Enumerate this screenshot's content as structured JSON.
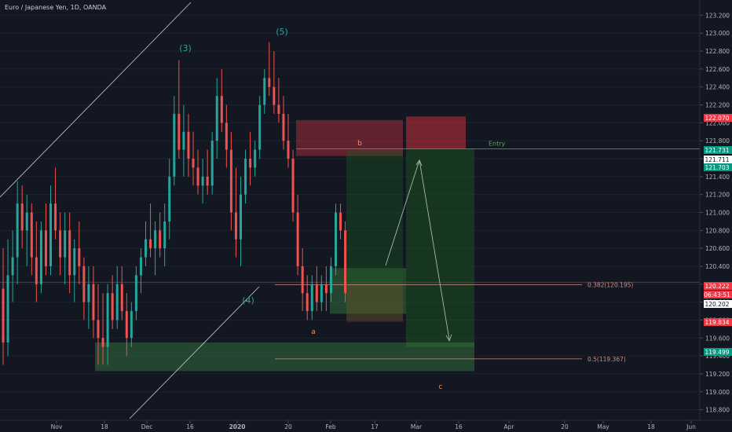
{
  "header": {
    "title": "Euro / Japanese Yen, 1D, OANDA"
  },
  "chart_data": {
    "type": "candlestick",
    "title": "Euro / Japanese Yen, 1D, OANDA",
    "ylim": [
      118.7,
      123.3
    ],
    "y_ticks": [
      "123.200",
      "123.000",
      "122.800",
      "122.600",
      "122.400",
      "122.200",
      "122.000",
      "121.800",
      "121.600",
      "121.400",
      "121.200",
      "121.000",
      "120.800",
      "120.600",
      "120.400",
      "120.200",
      "120.000",
      "119.800",
      "119.600",
      "119.400",
      "119.200",
      "119.000",
      "118.800"
    ],
    "x_ticks": [
      "Nov",
      "18",
      "Dec",
      "16",
      "2020",
      "20",
      "Feb",
      "17",
      "Mar",
      "16",
      "Apr",
      "20",
      "May",
      "18",
      "Jun"
    ],
    "candles": [
      {
        "o": 120.15,
        "h": 120.6,
        "l": 119.3,
        "c": 119.55
      },
      {
        "o": 119.55,
        "h": 120.7,
        "l": 119.4,
        "c": 120.3
      },
      {
        "o": 120.3,
        "h": 120.8,
        "l": 120.0,
        "c": 120.5
      },
      {
        "o": 120.5,
        "h": 121.35,
        "l": 120.2,
        "c": 121.1
      },
      {
        "o": 121.1,
        "h": 121.3,
        "l": 120.6,
        "c": 120.8
      },
      {
        "o": 120.8,
        "h": 121.2,
        "l": 120.4,
        "c": 121.0
      },
      {
        "o": 121.0,
        "h": 121.1,
        "l": 120.3,
        "c": 120.5
      },
      {
        "o": 120.5,
        "h": 120.9,
        "l": 120.0,
        "c": 120.2
      },
      {
        "o": 120.2,
        "h": 120.9,
        "l": 120.1,
        "c": 120.8
      },
      {
        "o": 120.8,
        "h": 121.1,
        "l": 120.3,
        "c": 120.4
      },
      {
        "o": 120.4,
        "h": 121.3,
        "l": 120.3,
        "c": 121.1
      },
      {
        "o": 121.1,
        "h": 121.5,
        "l": 120.7,
        "c": 120.8
      },
      {
        "o": 120.8,
        "h": 121.0,
        "l": 120.3,
        "c": 120.5
      },
      {
        "o": 120.5,
        "h": 121.0,
        "l": 120.2,
        "c": 120.8
      },
      {
        "o": 120.8,
        "h": 121.0,
        "l": 120.1,
        "c": 120.3
      },
      {
        "o": 120.3,
        "h": 120.7,
        "l": 120.0,
        "c": 120.6
      },
      {
        "o": 120.6,
        "h": 120.9,
        "l": 120.2,
        "c": 120.4
      },
      {
        "o": 120.4,
        "h": 120.5,
        "l": 119.8,
        "c": 120.0
      },
      {
        "o": 120.0,
        "h": 120.4,
        "l": 119.7,
        "c": 120.2
      },
      {
        "o": 120.2,
        "h": 120.4,
        "l": 119.6,
        "c": 119.8
      },
      {
        "o": 119.8,
        "h": 120.2,
        "l": 119.3,
        "c": 119.6
      },
      {
        "o": 119.6,
        "h": 120.1,
        "l": 119.3,
        "c": 119.5
      },
      {
        "o": 119.5,
        "h": 120.2,
        "l": 119.3,
        "c": 120.1
      },
      {
        "o": 120.1,
        "h": 120.3,
        "l": 119.7,
        "c": 119.8
      },
      {
        "o": 119.8,
        "h": 120.4,
        "l": 119.7,
        "c": 120.2
      },
      {
        "o": 120.2,
        "h": 120.4,
        "l": 119.8,
        "c": 119.9
      },
      {
        "o": 119.9,
        "h": 120.1,
        "l": 119.4,
        "c": 119.6
      },
      {
        "o": 119.6,
        "h": 120.0,
        "l": 119.5,
        "c": 119.9
      },
      {
        "o": 119.9,
        "h": 120.4,
        "l": 119.8,
        "c": 120.3
      },
      {
        "o": 120.3,
        "h": 120.6,
        "l": 120.1,
        "c": 120.5
      },
      {
        "o": 120.5,
        "h": 120.9,
        "l": 120.4,
        "c": 120.7
      },
      {
        "o": 120.7,
        "h": 121.1,
        "l": 120.5,
        "c": 120.6
      },
      {
        "o": 120.6,
        "h": 120.9,
        "l": 120.3,
        "c": 120.8
      },
      {
        "o": 120.8,
        "h": 121.0,
        "l": 120.5,
        "c": 120.6
      },
      {
        "o": 120.6,
        "h": 121.1,
        "l": 120.4,
        "c": 120.9
      },
      {
        "o": 120.9,
        "h": 121.6,
        "l": 120.7,
        "c": 121.4
      },
      {
        "o": 121.4,
        "h": 122.3,
        "l": 121.3,
        "c": 122.1
      },
      {
        "o": 122.1,
        "h": 122.7,
        "l": 121.6,
        "c": 121.7
      },
      {
        "o": 121.7,
        "h": 122.2,
        "l": 121.4,
        "c": 121.9
      },
      {
        "o": 121.9,
        "h": 122.1,
        "l": 121.4,
        "c": 121.6
      },
      {
        "o": 121.6,
        "h": 121.9,
        "l": 121.3,
        "c": 121.5
      },
      {
        "o": 121.5,
        "h": 121.7,
        "l": 121.2,
        "c": 121.3
      },
      {
        "o": 121.3,
        "h": 121.6,
        "l": 121.1,
        "c": 121.4
      },
      {
        "o": 121.4,
        "h": 121.7,
        "l": 121.2,
        "c": 121.3
      },
      {
        "o": 121.3,
        "h": 121.9,
        "l": 121.2,
        "c": 121.8
      },
      {
        "o": 121.8,
        "h": 122.5,
        "l": 121.6,
        "c": 122.3
      },
      {
        "o": 122.3,
        "h": 122.6,
        "l": 121.9,
        "c": 122.0
      },
      {
        "o": 122.0,
        "h": 122.2,
        "l": 121.5,
        "c": 121.7
      },
      {
        "o": 121.7,
        "h": 121.9,
        "l": 120.8,
        "c": 121.0
      },
      {
        "o": 121.0,
        "h": 121.5,
        "l": 120.5,
        "c": 120.7
      },
      {
        "o": 120.7,
        "h": 121.4,
        "l": 120.4,
        "c": 121.2
      },
      {
        "o": 121.2,
        "h": 121.7,
        "l": 121.1,
        "c": 121.6
      },
      {
        "o": 121.6,
        "h": 121.9,
        "l": 121.3,
        "c": 121.5
      },
      {
        "o": 121.5,
        "h": 121.8,
        "l": 121.4,
        "c": 121.7
      },
      {
        "o": 121.7,
        "h": 122.3,
        "l": 121.6,
        "c": 122.2
      },
      {
        "o": 122.2,
        "h": 122.6,
        "l": 122.1,
        "c": 122.5
      },
      {
        "o": 122.5,
        "h": 122.9,
        "l": 122.3,
        "c": 122.4
      },
      {
        "o": 122.4,
        "h": 122.8,
        "l": 122.1,
        "c": 122.2
      },
      {
        "o": 122.2,
        "h": 122.5,
        "l": 122.0,
        "c": 122.1
      },
      {
        "o": 122.1,
        "h": 122.3,
        "l": 121.7,
        "c": 121.8
      },
      {
        "o": 121.8,
        "h": 122.1,
        "l": 121.5,
        "c": 121.6
      },
      {
        "o": 121.6,
        "h": 121.7,
        "l": 120.9,
        "c": 121.0
      },
      {
        "o": 121.0,
        "h": 121.2,
        "l": 120.3,
        "c": 120.4
      },
      {
        "o": 120.4,
        "h": 120.6,
        "l": 119.9,
        "c": 120.1
      },
      {
        "o": 120.1,
        "h": 120.3,
        "l": 119.8,
        "c": 119.9
      },
      {
        "o": 119.9,
        "h": 120.3,
        "l": 119.8,
        "c": 120.2
      },
      {
        "o": 120.2,
        "h": 120.4,
        "l": 119.9,
        "c": 120.0
      },
      {
        "o": 120.0,
        "h": 120.3,
        "l": 119.9,
        "c": 120.2
      },
      {
        "o": 120.2,
        "h": 120.4,
        "l": 119.9,
        "c": 120.1
      },
      {
        "o": 120.1,
        "h": 120.5,
        "l": 120.0,
        "c": 120.4
      },
      {
        "o": 120.4,
        "h": 121.1,
        "l": 120.3,
        "c": 121.0
      },
      {
        "o": 121.0,
        "h": 121.1,
        "l": 120.7,
        "c": 120.8
      },
      {
        "o": 120.8,
        "h": 120.9,
        "l": 120.0,
        "c": 120.1
      }
    ],
    "zones": [
      {
        "y1": 120.38,
        "y2": 119.87,
        "color": "#4caf50",
        "opacity": 0.3
      },
      {
        "y1": 120.2,
        "y2": 119.78,
        "color": "#f23645",
        "opacity": 0.25
      },
      {
        "y1": 122.03,
        "y2": 121.63,
        "color": "#f23645",
        "opacity": 0.35
      },
      {
        "y1": 122.07,
        "y2": 121.711,
        "color": "#f23645",
        "opacity": 0.45
      },
      {
        "y1": 121.711,
        "y2": 119.499,
        "color": "#1b5e20",
        "opacity": 0.45
      },
      {
        "y1": 121.7,
        "y2": 119.8,
        "color": "#1b5e20",
        "opacity": 0.35
      },
      {
        "y1": 119.55,
        "y2": 119.23,
        "color": "#4caf50",
        "opacity": 0.3
      }
    ],
    "levels": [
      {
        "label": "Entry",
        "price": 121.711,
        "color": "#4caf50"
      },
      {
        "label": "0.382(120.195)",
        "price": 120.195,
        "color": "#d08b7c"
      },
      {
        "label": "0.5(119.367)",
        "price": 119.367,
        "color": "#d08b7c"
      },
      {
        "label": "",
        "price": 120.222,
        "color": "#7a3a3a"
      }
    ],
    "wave_labels": [
      {
        "text": "(3)",
        "color": "#26a69a"
      },
      {
        "text": "(4)",
        "color": "#26a69a"
      },
      {
        "text": "(5)",
        "color": "#26a69a"
      },
      {
        "text": "b",
        "color": "#ef8f6f"
      },
      {
        "text": "a",
        "color": "#ef8f6f"
      },
      {
        "text": "c",
        "color": "#ef8f6f"
      }
    ],
    "price_tags": [
      {
        "text": "122.070",
        "bg": "#f23645",
        "fg": "#ffffff"
      },
      {
        "text": "121.731",
        "bg": "#089981",
        "fg": "#ffffff"
      },
      {
        "text": "121.711",
        "bg": "#ffffff",
        "fg": "#131722"
      },
      {
        "text": "121.703",
        "bg": "#089981",
        "fg": "#ffffff"
      },
      {
        "text": "120.222",
        "bg": "#f23645",
        "fg": "#ffffff"
      },
      {
        "text": "06:43:51",
        "bg": "#f23645",
        "fg": "#ffffff"
      },
      {
        "text": "120.202",
        "bg": "#ffffff",
        "fg": "#131722"
      },
      {
        "text": "119.834",
        "bg": "#f23645",
        "fg": "#ffffff"
      },
      {
        "text": "119.499",
        "bg": "#089981",
        "fg": "#ffffff"
      }
    ],
    "colors": {
      "up": "#26a69a",
      "down": "#ef5350",
      "background": "#131722",
      "axis_text": "#b2b5be",
      "grid": "#1e222d"
    }
  }
}
